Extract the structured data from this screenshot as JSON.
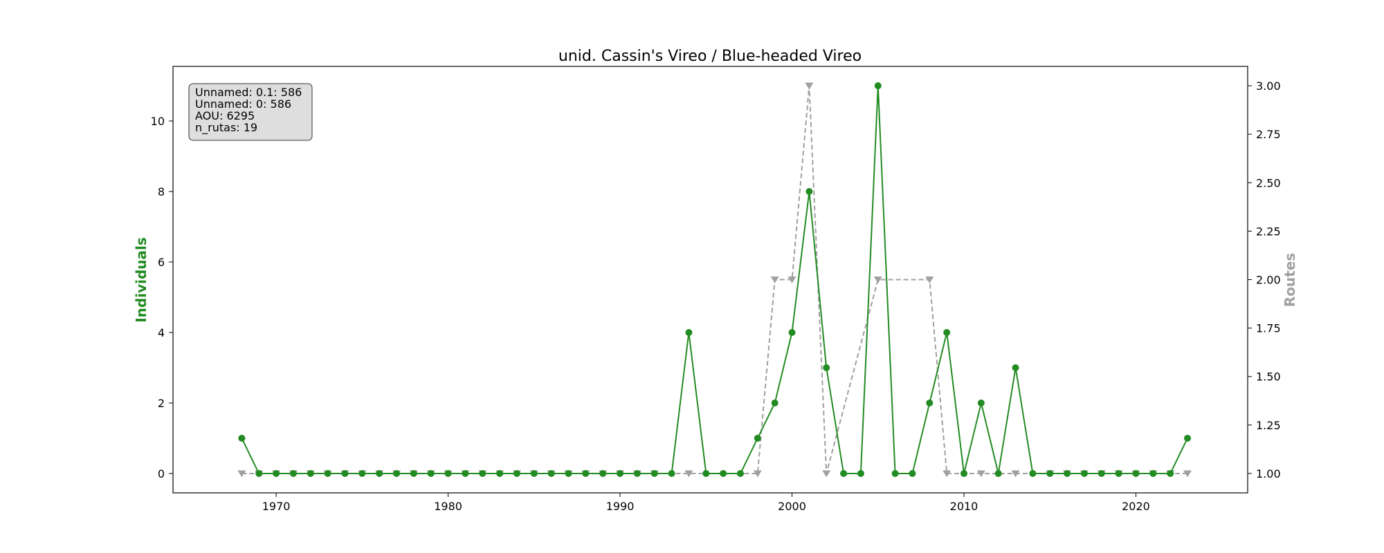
{
  "chart_data": {
    "type": "line",
    "title": "unid. Cassin's Vireo / Blue-headed Vireo",
    "xlabel": "",
    "ylabel": "Individuals",
    "ylabel_right": "Routes",
    "xlim": [
      1964,
      2026.5
    ],
    "ylim": [
      -0.55,
      11.55
    ],
    "ylim_right": [
      0.9,
      3.1
    ],
    "x_ticks": [
      1970,
      1980,
      1990,
      2000,
      2010,
      2020
    ],
    "y_ticks": [
      0,
      2,
      4,
      6,
      8,
      10
    ],
    "y_ticks_right": [
      "1.00",
      "1.25",
      "1.50",
      "1.75",
      "2.00",
      "2.25",
      "2.50",
      "2.75",
      "3.00"
    ],
    "grid": false,
    "colors": {
      "individuals": "#228b22",
      "routes": "#a0a0a0"
    },
    "info_box": [
      "Unnamed: 0.1: 586",
      "Unnamed: 0: 586",
      "AOU: 6295",
      "n_rutas: 19"
    ],
    "x": [
      1968,
      1969,
      1970,
      1971,
      1972,
      1973,
      1974,
      1975,
      1976,
      1977,
      1978,
      1979,
      1980,
      1981,
      1982,
      1983,
      1984,
      1985,
      1986,
      1987,
      1988,
      1989,
      1990,
      1991,
      1992,
      1993,
      1994,
      1995,
      1996,
      1997,
      1998,
      1999,
      2000,
      2001,
      2002,
      2003,
      2004,
      2005,
      2006,
      2007,
      2008,
      2009,
      2010,
      2011,
      2012,
      2013,
      2014,
      2015,
      2016,
      2017,
      2018,
      2019,
      2020,
      2021,
      2022,
      2023
    ],
    "series": [
      {
        "axis": "left",
        "marker": "circle",
        "linestyle": "solid",
        "values": [
          1,
          0,
          0,
          0,
          0,
          0,
          0,
          0,
          0,
          0,
          0,
          0,
          0,
          0,
          0,
          0,
          0,
          0,
          0,
          0,
          0,
          0,
          0,
          0,
          0,
          0,
          4,
          0,
          0,
          0,
          1,
          2,
          4,
          8,
          3,
          0,
          0,
          11,
          0,
          0,
          2,
          4,
          0,
          2,
          0,
          3,
          0,
          0,
          0,
          0,
          0,
          0,
          0,
          0,
          0,
          1
        ]
      },
      {
        "axis": "right",
        "marker": "triangle-down",
        "linestyle": "dashed",
        "points": [
          [
            1968,
            1
          ],
          [
            1969,
            1
          ],
          [
            1970,
            1
          ],
          [
            1971,
            1
          ],
          [
            1972,
            1
          ],
          [
            1973,
            1
          ],
          [
            1974,
            1
          ],
          [
            1975,
            1
          ],
          [
            1976,
            1
          ],
          [
            1977,
            1
          ],
          [
            1978,
            1
          ],
          [
            1979,
            1
          ],
          [
            1980,
            1
          ],
          [
            1981,
            1
          ],
          [
            1982,
            1
          ],
          [
            1983,
            1
          ],
          [
            1984,
            1
          ],
          [
            1985,
            1
          ],
          [
            1986,
            1
          ],
          [
            1987,
            1
          ],
          [
            1988,
            1
          ],
          [
            1989,
            1
          ],
          [
            1990,
            1
          ],
          [
            1991,
            1
          ],
          [
            1992,
            1
          ],
          [
            1994,
            1
          ],
          [
            1998,
            1
          ],
          [
            1999,
            2
          ],
          [
            2000,
            2
          ],
          [
            2001,
            3
          ],
          [
            2002,
            1
          ],
          [
            2005,
            2
          ],
          [
            2008,
            2
          ],
          [
            2009,
            1
          ],
          [
            2011,
            1
          ],
          [
            2013,
            1
          ],
          [
            2015,
            1
          ],
          [
            2016,
            1
          ],
          [
            2017,
            1
          ],
          [
            2018,
            1
          ],
          [
            2019,
            1
          ],
          [
            2020,
            1
          ],
          [
            2021,
            1
          ],
          [
            2022,
            1
          ],
          [
            2023,
            1
          ]
        ]
      }
    ]
  }
}
